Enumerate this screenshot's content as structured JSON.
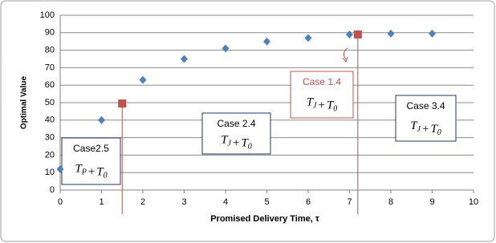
{
  "chart_data": {
    "type": "scatter",
    "xlabel": "Promised Delivery Time, τ",
    "ylabel": "Optimal Value",
    "xlim": [
      0,
      10
    ],
    "xticks": [
      0,
      1,
      2,
      3,
      4,
      5,
      6,
      7,
      8,
      9,
      10
    ],
    "ylim": [
      0,
      100
    ],
    "yticks": [
      0,
      10,
      20,
      30,
      40,
      50,
      60,
      70,
      80,
      90,
      100
    ],
    "grid": true,
    "series": [
      {
        "color": "#4f81bd",
        "marker": "diamond",
        "x": [
          0,
          1,
          2,
          3,
          4,
          5,
          6,
          7,
          8,
          9
        ],
        "values": [
          12,
          40,
          63,
          75,
          81,
          85,
          87,
          89,
          89.5,
          89.5
        ]
      },
      {
        "color": "#c0504d",
        "marker": "square",
        "drop_lines": true,
        "x": [
          1.5,
          7.2
        ],
        "values": [
          49.5,
          89
        ]
      }
    ],
    "annotations": [
      {
        "title": "Case2.5",
        "formula": [
          {
            "base": "T",
            "sub": "P"
          },
          {
            "op": "+"
          },
          {
            "base": "T",
            "sub": "0"
          }
        ]
      },
      {
        "title": "Case 2.4",
        "formula": [
          {
            "base": "T",
            "sub": "J"
          },
          {
            "op": "+"
          },
          {
            "base": "T",
            "sub": "0"
          }
        ]
      },
      {
        "title": "Case 1.4",
        "formula": [
          {
            "base": "T",
            "sub": "J"
          },
          {
            "op": "+"
          },
          {
            "base": "T",
            "sub": "0"
          }
        ],
        "color": "#c0504d"
      },
      {
        "title": "Case 3.4",
        "formula": [
          {
            "base": "T",
            "sub": "J"
          },
          {
            "op": "+"
          },
          {
            "base": "T",
            "sub": "0"
          }
        ]
      }
    ]
  }
}
